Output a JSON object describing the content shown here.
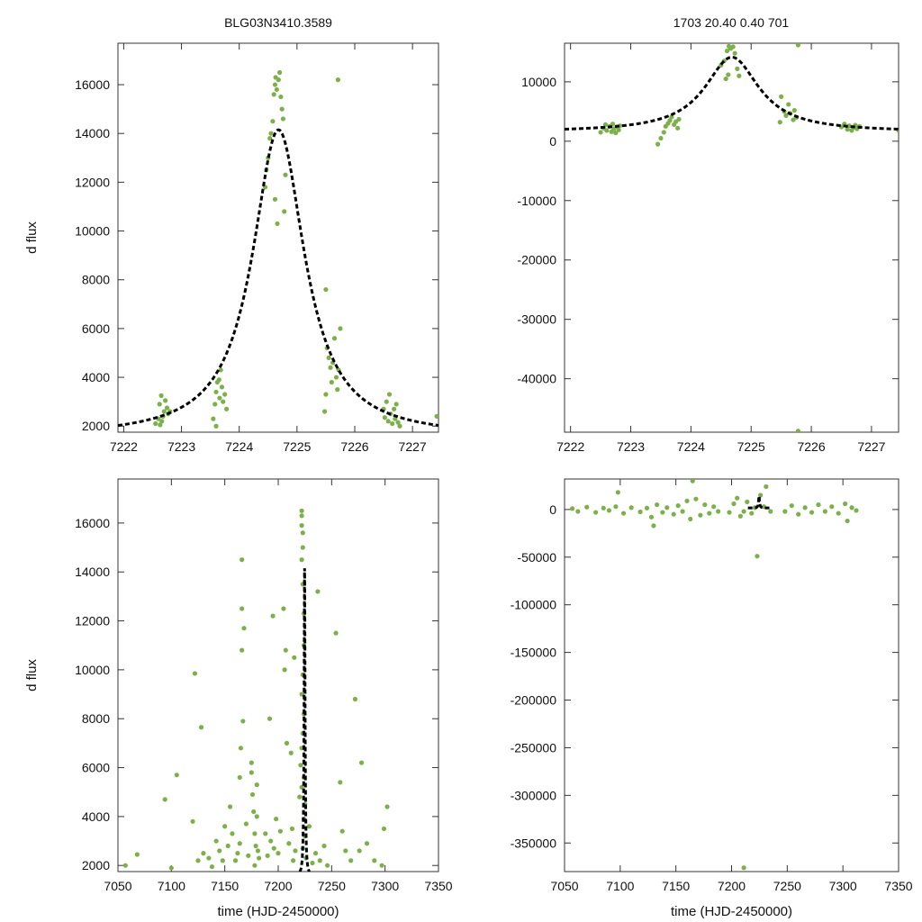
{
  "header": {
    "left_title": "BLG03N3410.3589",
    "right_title": "1703  20.40  0.40  701"
  },
  "colors": {
    "points": "#7cb04a",
    "model": "#000000",
    "axes": "#333333"
  },
  "chart_data": [
    {
      "type": "scatter",
      "name": "zoom-linear",
      "ylabel": "d flux",
      "xlabel": "",
      "xlim": [
        7221.9,
        7227.45
      ],
      "ylim": [
        1750,
        17700
      ],
      "xticks": [
        7222,
        7223,
        7224,
        7225,
        7226,
        7227
      ],
      "yticks": [
        2000,
        4000,
        6000,
        8000,
        10000,
        12000,
        14000,
        16000
      ],
      "points": [
        [
          7222.55,
          2100
        ],
        [
          7222.6,
          2300
        ],
        [
          7222.62,
          2900
        ],
        [
          7222.65,
          3250
        ],
        [
          7222.66,
          2200
        ],
        [
          7222.7,
          2600
        ],
        [
          7222.72,
          3050
        ],
        [
          7222.75,
          2750
        ],
        [
          7222.77,
          2500
        ],
        [
          7222.8,
          2600
        ],
        [
          7222.63,
          2050
        ],
        [
          7222.68,
          2400
        ],
        [
          7223.55,
          2300
        ],
        [
          7223.58,
          2900
        ],
        [
          7223.6,
          3400
        ],
        [
          7223.62,
          3800
        ],
        [
          7223.65,
          3900
        ],
        [
          7223.68,
          4300
        ],
        [
          7223.7,
          3600
        ],
        [
          7223.72,
          3000
        ],
        [
          7223.75,
          3300
        ],
        [
          7223.78,
          2700
        ],
        [
          7223.6,
          2000
        ],
        [
          7223.66,
          3150
        ],
        [
          7224.5,
          13000
        ],
        [
          7224.53,
          13800
        ],
        [
          7224.55,
          14000
        ],
        [
          7224.58,
          14500
        ],
        [
          7224.6,
          15600
        ],
        [
          7224.62,
          16000
        ],
        [
          7224.63,
          16300
        ],
        [
          7224.65,
          15800
        ],
        [
          7224.68,
          16200
        ],
        [
          7224.7,
          16500
        ],
        [
          7224.72,
          15500
        ],
        [
          7224.74,
          15000
        ],
        [
          7224.76,
          14600
        ],
        [
          7224.62,
          11300
        ],
        [
          7224.66,
          10300
        ],
        [
          7224.78,
          10800
        ],
        [
          7224.8,
          12300
        ],
        [
          7224.45,
          11800
        ],
        [
          7224.47,
          12500
        ],
        [
          7225.5,
          7600
        ],
        [
          7225.52,
          5200
        ],
        [
          7225.55,
          4800
        ],
        [
          7225.58,
          4400
        ],
        [
          7225.6,
          3800
        ],
        [
          7225.62,
          4600
        ],
        [
          7225.65,
          5600
        ],
        [
          7225.68,
          4000
        ],
        [
          7225.7,
          3500
        ],
        [
          7225.72,
          4300
        ],
        [
          7225.5,
          3300
        ],
        [
          7225.48,
          2600
        ],
        [
          7225.75,
          6000
        ],
        [
          7225.71,
          16200
        ],
        [
          7226.5,
          2700
        ],
        [
          7226.55,
          3000
        ],
        [
          7226.58,
          2200
        ],
        [
          7226.6,
          3300
        ],
        [
          7226.62,
          2500
        ],
        [
          7226.65,
          2100
        ],
        [
          7226.68,
          2700
        ],
        [
          7226.7,
          2300
        ],
        [
          7226.72,
          2900
        ],
        [
          7226.75,
          2150
        ],
        [
          7226.78,
          2000
        ],
        [
          7226.52,
          2350
        ],
        [
          7227.42,
          2400
        ]
      ],
      "model": {
        "t0": 7224.68,
        "amp": 12600,
        "tau": 0.55,
        "base": 1550
      }
    },
    {
      "type": "scatter",
      "name": "zoom-full",
      "ylabel": "",
      "xlabel": "",
      "xlim": [
        7221.9,
        7227.45
      ],
      "ylim": [
        -49000,
        16500
      ],
      "xticks": [
        7222,
        7223,
        7224,
        7225,
        7226,
        7227
      ],
      "yticks": [
        -40000,
        -30000,
        -20000,
        -10000,
        0,
        10000
      ],
      "points": [
        [
          7222.5,
          1500
        ],
        [
          7222.55,
          2200
        ],
        [
          7222.58,
          2800
        ],
        [
          7222.6,
          1800
        ],
        [
          7222.65,
          2500
        ],
        [
          7222.68,
          1600
        ],
        [
          7222.7,
          2900
        ],
        [
          7222.72,
          2100
        ],
        [
          7222.75,
          1400
        ],
        [
          7222.78,
          2400
        ],
        [
          7222.8,
          1900
        ],
        [
          7222.82,
          2600
        ],
        [
          7223.45,
          -500
        ],
        [
          7223.5,
          500
        ],
        [
          7223.55,
          1500
        ],
        [
          7223.58,
          2500
        ],
        [
          7223.62,
          3000
        ],
        [
          7223.65,
          3500
        ],
        [
          7223.68,
          4100
        ],
        [
          7223.72,
          2800
        ],
        [
          7223.75,
          3300
        ],
        [
          7223.78,
          2200
        ],
        [
          7223.8,
          3700
        ],
        [
          7224.5,
          12800
        ],
        [
          7224.55,
          13500
        ],
        [
          7224.6,
          15200
        ],
        [
          7224.63,
          16000
        ],
        [
          7224.66,
          15600
        ],
        [
          7224.7,
          15900
        ],
        [
          7224.73,
          14800
        ],
        [
          7224.77,
          12200
        ],
        [
          7224.8,
          11000
        ],
        [
          7224.58,
          10500
        ],
        [
          7224.62,
          11200
        ],
        [
          7225.5,
          7500
        ],
        [
          7225.55,
          5000
        ],
        [
          7225.58,
          4300
        ],
        [
          7225.62,
          6200
        ],
        [
          7225.65,
          4700
        ],
        [
          7225.7,
          3600
        ],
        [
          7225.72,
          5200
        ],
        [
          7225.48,
          3200
        ],
        [
          7225.75,
          4000
        ],
        [
          7225.78,
          16200
        ],
        [
          7226.5,
          2400
        ],
        [
          7226.55,
          2900
        ],
        [
          7226.6,
          2000
        ],
        [
          7226.63,
          2600
        ],
        [
          7226.67,
          1800
        ],
        [
          7226.7,
          2300
        ],
        [
          7226.73,
          2700
        ],
        [
          7226.76,
          2100
        ],
        [
          7226.8,
          2500
        ],
        [
          7227.45,
          1800
        ],
        [
          7225.78,
          -48800
        ]
      ],
      "model": {
        "t0": 7224.68,
        "amp": 12600,
        "tau": 0.55,
        "base": 1550
      }
    },
    {
      "type": "scatter",
      "name": "season-linear",
      "ylabel": "d flux",
      "xlabel": "time (HJD-2450000)",
      "xlim": [
        7050,
        7350
      ],
      "ylim": [
        1750,
        17800
      ],
      "xticks": [
        7050,
        7100,
        7150,
        7200,
        7250,
        7300,
        7350
      ],
      "yticks": [
        2000,
        4000,
        6000,
        8000,
        10000,
        12000,
        14000,
        16000
      ],
      "points": [
        [
          7057,
          2000
        ],
        [
          7068,
          2450
        ],
        [
          7094,
          4700
        ],
        [
          7100,
          1900
        ],
        [
          7105,
          5700
        ],
        [
          7120,
          3800
        ],
        [
          7122,
          9850
        ],
        [
          7128,
          7650
        ],
        [
          7125,
          2200
        ],
        [
          7130,
          2500
        ],
        [
          7135,
          2300
        ],
        [
          7138,
          1950
        ],
        [
          7142,
          3000
        ],
        [
          7145,
          2600
        ],
        [
          7148,
          2200
        ],
        [
          7150,
          3600
        ],
        [
          7153,
          2800
        ],
        [
          7155,
          4400
        ],
        [
          7157,
          3300
        ],
        [
          7160,
          2200
        ],
        [
          7162,
          2500
        ],
        [
          7164,
          2900
        ],
        [
          7166,
          14500
        ],
        [
          7166,
          12500
        ],
        [
          7166,
          10800
        ],
        [
          7167,
          7900
        ],
        [
          7165,
          6800
        ],
        [
          7164,
          5600
        ],
        [
          7168,
          11700
        ],
        [
          7170,
          3700
        ],
        [
          7172,
          2400
        ],
        [
          7175,
          5800
        ],
        [
          7175,
          6200
        ],
        [
          7176,
          4900
        ],
        [
          7177,
          4200
        ],
        [
          7178,
          3300
        ],
        [
          7179,
          2800
        ],
        [
          7180,
          5300
        ],
        [
          7180,
          4000
        ],
        [
          7178,
          2000
        ],
        [
          7181,
          2600
        ],
        [
          7182,
          2300
        ],
        [
          7188,
          3300
        ],
        [
          7190,
          2400
        ],
        [
          7192,
          8000
        ],
        [
          7193,
          3000
        ],
        [
          7195,
          12200
        ],
        [
          7196,
          2700
        ],
        [
          7198,
          3900
        ],
        [
          7200,
          2500
        ],
        [
          7202,
          3400
        ],
        [
          7205,
          12500
        ],
        [
          7206,
          10000
        ],
        [
          7207,
          10800
        ],
        [
          7208,
          7000
        ],
        [
          7210,
          2900
        ],
        [
          7212,
          6600
        ],
        [
          7213,
          3500
        ],
        [
          7214,
          2200
        ],
        [
          7215,
          10500
        ],
        [
          7216,
          2600
        ],
        [
          7220,
          4800
        ],
        [
          7221,
          6100
        ],
        [
          7222,
          5200
        ],
        [
          7222,
          16500
        ],
        [
          7222,
          16300
        ],
        [
          7222,
          15900
        ],
        [
          7223,
          15600
        ],
        [
          7223,
          15000
        ],
        [
          7222,
          14500
        ],
        [
          7223,
          13500
        ],
        [
          7224,
          12300
        ],
        [
          7224,
          11000
        ],
        [
          7223,
          9800
        ],
        [
          7222,
          9000
        ],
        [
          7224,
          8200
        ],
        [
          7223,
          7400
        ],
        [
          7222,
          6800
        ],
        [
          7224,
          5600
        ],
        [
          7225,
          4500
        ],
        [
          7224,
          3900
        ],
        [
          7225,
          3200
        ],
        [
          7223,
          2700
        ],
        [
          7226,
          2300
        ],
        [
          7229,
          3600
        ],
        [
          7232,
          2100
        ],
        [
          7235,
          2500
        ],
        [
          7237,
          13200
        ],
        [
          7239,
          2200
        ],
        [
          7243,
          2800
        ],
        [
          7246,
          2000
        ],
        [
          7254,
          11500
        ],
        [
          7258,
          5400
        ],
        [
          7260,
          3400
        ],
        [
          7263,
          2600
        ],
        [
          7268,
          2200
        ],
        [
          7272,
          8800
        ],
        [
          7276,
          2600
        ],
        [
          7278,
          6200
        ],
        [
          7283,
          2900
        ],
        [
          7290,
          2200
        ],
        [
          7302,
          4400
        ],
        [
          7299,
          3500
        ],
        [
          7297,
          2000
        ]
      ],
      "model": {
        "t0": 7224.68,
        "amp": 12600,
        "tau": 0.55,
        "base": 1550
      }
    },
    {
      "type": "scatter",
      "name": "season-full",
      "ylabel": "",
      "xlabel": "time (HJD-2450000)",
      "xlim": [
        7050,
        7350
      ],
      "ylim": [
        -380000,
        32000
      ],
      "xticks": [
        7050,
        7100,
        7150,
        7200,
        7250,
        7300,
        7350
      ],
      "yticks": [
        -350000,
        -300000,
        -250000,
        -200000,
        -150000,
        -100000,
        -50000,
        0
      ],
      "points": [
        [
          7057,
          1000
        ],
        [
          7062,
          -2000
        ],
        [
          7070,
          2500
        ],
        [
          7078,
          -3000
        ],
        [
          7085,
          1500
        ],
        [
          7090,
          -1000
        ],
        [
          7096,
          3000
        ],
        [
          7098,
          18000
        ],
        [
          7103,
          -4000
        ],
        [
          7110,
          2000
        ],
        [
          7118,
          -2500
        ],
        [
          7124,
          1500
        ],
        [
          7128,
          -8000
        ],
        [
          7130,
          -17000
        ],
        [
          7133,
          5000
        ],
        [
          7138,
          -3000
        ],
        [
          7142,
          2000
        ],
        [
          7148,
          -5000
        ],
        [
          7152,
          4000
        ],
        [
          7156,
          -2000
        ],
        [
          7160,
          9000
        ],
        [
          7163,
          -10000
        ],
        [
          7165,
          30000
        ],
        [
          7168,
          11000
        ],
        [
          7172,
          -6000
        ],
        [
          7176,
          5000
        ],
        [
          7180,
          -4000
        ],
        [
          7184,
          3000
        ],
        [
          7188,
          -2000
        ],
        [
          7198,
          -3000
        ],
        [
          7202,
          6000
        ],
        [
          7205,
          12000
        ],
        [
          7208,
          -7000
        ],
        [
          7211,
          -2000
        ],
        [
          7214,
          8000
        ],
        [
          7218,
          -4000
        ],
        [
          7221,
          2000
        ],
        [
          7223,
          -49000
        ],
        [
          7226,
          15000
        ],
        [
          7229,
          3000
        ],
        [
          7231,
          24000
        ],
        [
          7235,
          -2000
        ],
        [
          7248,
          -2000
        ],
        [
          7254,
          4000
        ],
        [
          7260,
          -5000
        ],
        [
          7266,
          2000
        ],
        [
          7272,
          -3000
        ],
        [
          7278,
          5000
        ],
        [
          7284,
          -2000
        ],
        [
          7290,
          3000
        ],
        [
          7296,
          -4000
        ],
        [
          7302,
          6000
        ],
        [
          7304,
          -12000
        ],
        [
          7308,
          2000
        ],
        [
          7312,
          -1000
        ],
        [
          7211,
          -376000
        ]
      ],
      "model": {
        "t0": 7224.68,
        "amp": 12600,
        "tau": 0.55,
        "base": 1550
      }
    }
  ]
}
